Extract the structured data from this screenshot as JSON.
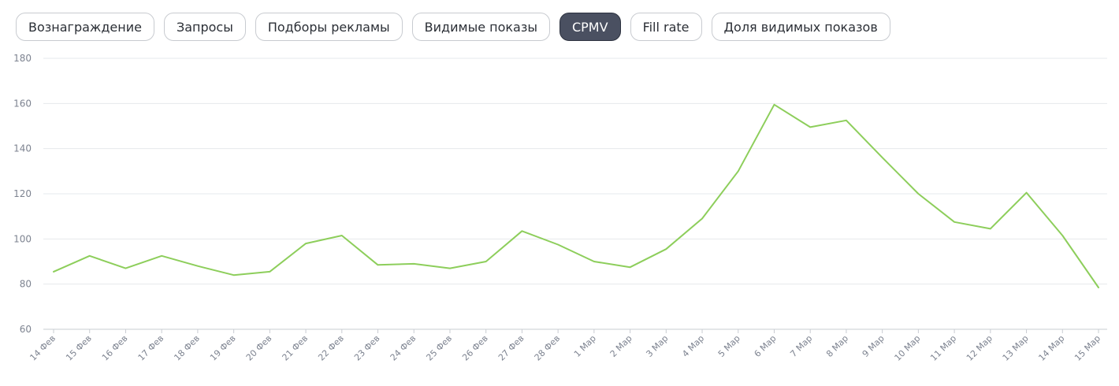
{
  "tabs": [
    {
      "label": "Вознаграждение",
      "active": false
    },
    {
      "label": "Запросы",
      "active": false
    },
    {
      "label": "Подборы рекламы",
      "active": false
    },
    {
      "label": "Видимые показы",
      "active": false
    },
    {
      "label": "CPMV",
      "active": true
    },
    {
      "label": "Fill rate",
      "active": false
    },
    {
      "label": "Доля видимых показов",
      "active": false
    }
  ],
  "colors": {
    "line": "#8dce5b",
    "active_tab": "#4a5061"
  },
  "chart_data": {
    "type": "line",
    "title": "",
    "xlabel": "",
    "ylabel": "",
    "ylim": [
      60,
      180
    ],
    "yticks": [
      60,
      80,
      100,
      120,
      140,
      160,
      180
    ],
    "grid": true,
    "categories": [
      "14 Фев",
      "15 Фев",
      "16 Фев",
      "17 Фев",
      "18 Фев",
      "19 Фев",
      "20 Фев",
      "21 Фев",
      "22 Фев",
      "23 Фев",
      "24 Фев",
      "25 Фев",
      "26 Фев",
      "27 Фев",
      "28 Фев",
      "1 Мар",
      "2 Мар",
      "3 Мар",
      "4 Мар",
      "5 Мар",
      "6 Мар",
      "7 Мар",
      "8 Мар",
      "9 Мар",
      "10 Мар",
      "11 Мар",
      "12 Мар",
      "13 Мар",
      "14 Мар",
      "15 Мар"
    ],
    "series": [
      {
        "values": [
          85.5,
          92.5,
          87,
          92.5,
          88,
          84,
          85.5,
          98,
          101.5,
          88.5,
          89,
          87,
          90,
          103.5,
          97.5,
          90,
          87.5,
          95.5,
          109,
          130,
          159.5,
          149.5,
          152.5,
          136,
          120,
          107.5,
          104.5,
          120.5,
          101.5,
          78.5
        ]
      }
    ]
  }
}
